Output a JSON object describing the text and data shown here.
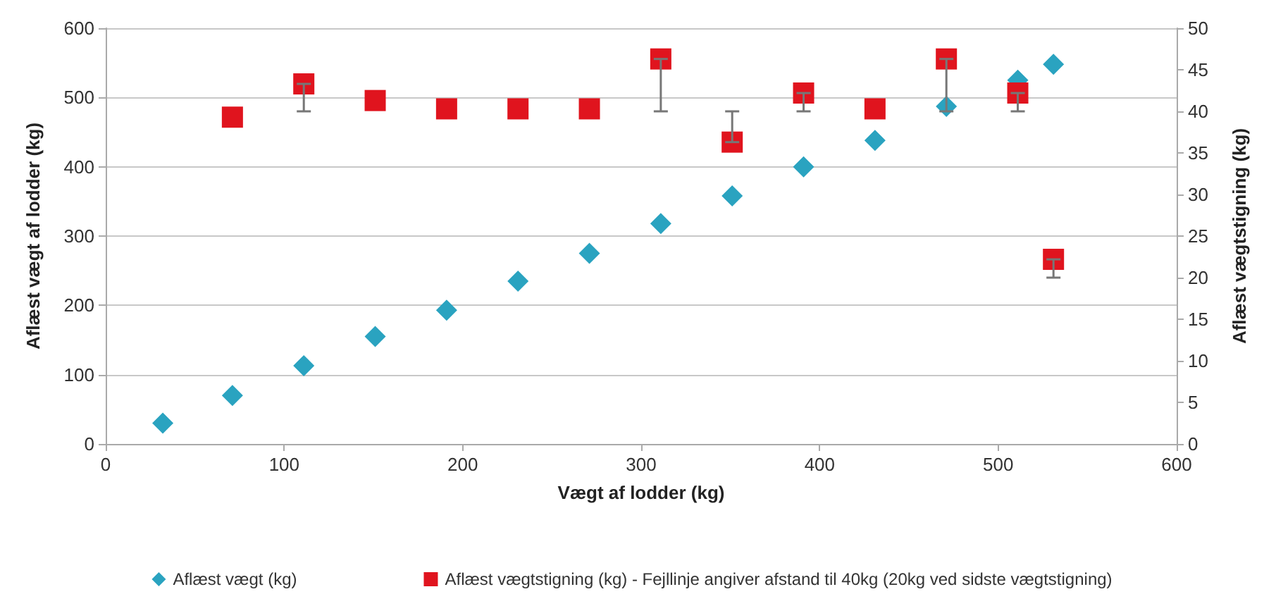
{
  "chart_data": {
    "type": "scatter",
    "xlabel": "Vægt af lodder (kg)",
    "ylabel": "Aflæst vægt af lodder (kg)",
    "y2label": "Aflæst vægtstigning (kg)",
    "xlim": [
      0,
      600
    ],
    "xticks": [
      0,
      100,
      200,
      300,
      400,
      500,
      600
    ],
    "ylim": [
      0,
      600
    ],
    "yticks": [
      0,
      100,
      200,
      300,
      400,
      500,
      600
    ],
    "y2lim": [
      0,
      50
    ],
    "y2ticks": [
      0,
      5,
      10,
      15,
      20,
      25,
      30,
      35,
      40,
      45,
      50
    ],
    "grid": "y",
    "legend": "bottom",
    "series": [
      {
        "name": "Aflæst vægt (kg)",
        "color": "#2aa3c0",
        "marker": "diamond",
        "x": [
          32,
          71,
          111,
          151,
          191,
          231,
          271,
          311,
          351,
          391,
          431,
          471,
          511,
          531
        ],
        "values": [
          30,
          70,
          113,
          155,
          193,
          235,
          275,
          318,
          358,
          400,
          438,
          487,
          525,
          548
        ]
      },
      {
        "name": "Aflæst vægtstigning (kg) - Fejllinje angiver afstand til 40kg (20kg ved sidste vægtstigning)",
        "color": "#e0141e",
        "marker": "square",
        "axis": "y2",
        "x": [
          71,
          111,
          151,
          191,
          231,
          271,
          311,
          351,
          391,
          431,
          471,
          511,
          531
        ],
        "values": [
          39.3,
          43.3,
          41.3,
          40.3,
          40.3,
          40.3,
          46.3,
          36.3,
          42.2,
          40.3,
          46.3,
          42.2,
          22.2
        ],
        "errors": [
          null,
          [
            40,
            43.3
          ],
          null,
          null,
          null,
          null,
          [
            40,
            46.3
          ],
          [
            36.3,
            40
          ],
          [
            40,
            42.2
          ],
          null,
          [
            40,
            46.3
          ],
          [
            40,
            42.2
          ],
          [
            20,
            22.2
          ]
        ]
      }
    ]
  }
}
